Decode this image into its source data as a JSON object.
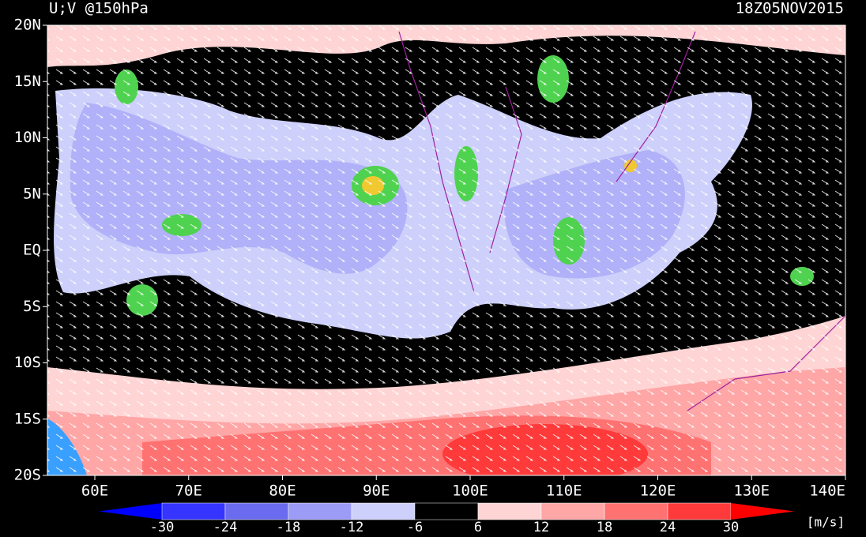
{
  "header": {
    "title": "U;V @150hPa",
    "time": "18Z05NOV2015"
  },
  "axes": {
    "lat_labels": [
      "20N",
      "15N",
      "10N",
      "5N",
      "EQ",
      "5S",
      "10S",
      "15S",
      "20S"
    ],
    "lon_labels": [
      "60E",
      "70E",
      "80E",
      "90E",
      "100E",
      "110E",
      "120E",
      "130E",
      "140E"
    ]
  },
  "colorbar": {
    "labels": [
      -30,
      -24,
      -18,
      -12,
      -6,
      6,
      12,
      18,
      24,
      30
    ],
    "colors": [
      "#0000ff",
      "#3535ff",
      "#6b6bf0",
      "#9c9cf6",
      "#cdd0fa",
      "#000000",
      "#ffd4d4",
      "#ffa6a6",
      "#ff7272",
      "#ff3a3a",
      "#ff0000"
    ],
    "unit": "[m/s]"
  }
}
